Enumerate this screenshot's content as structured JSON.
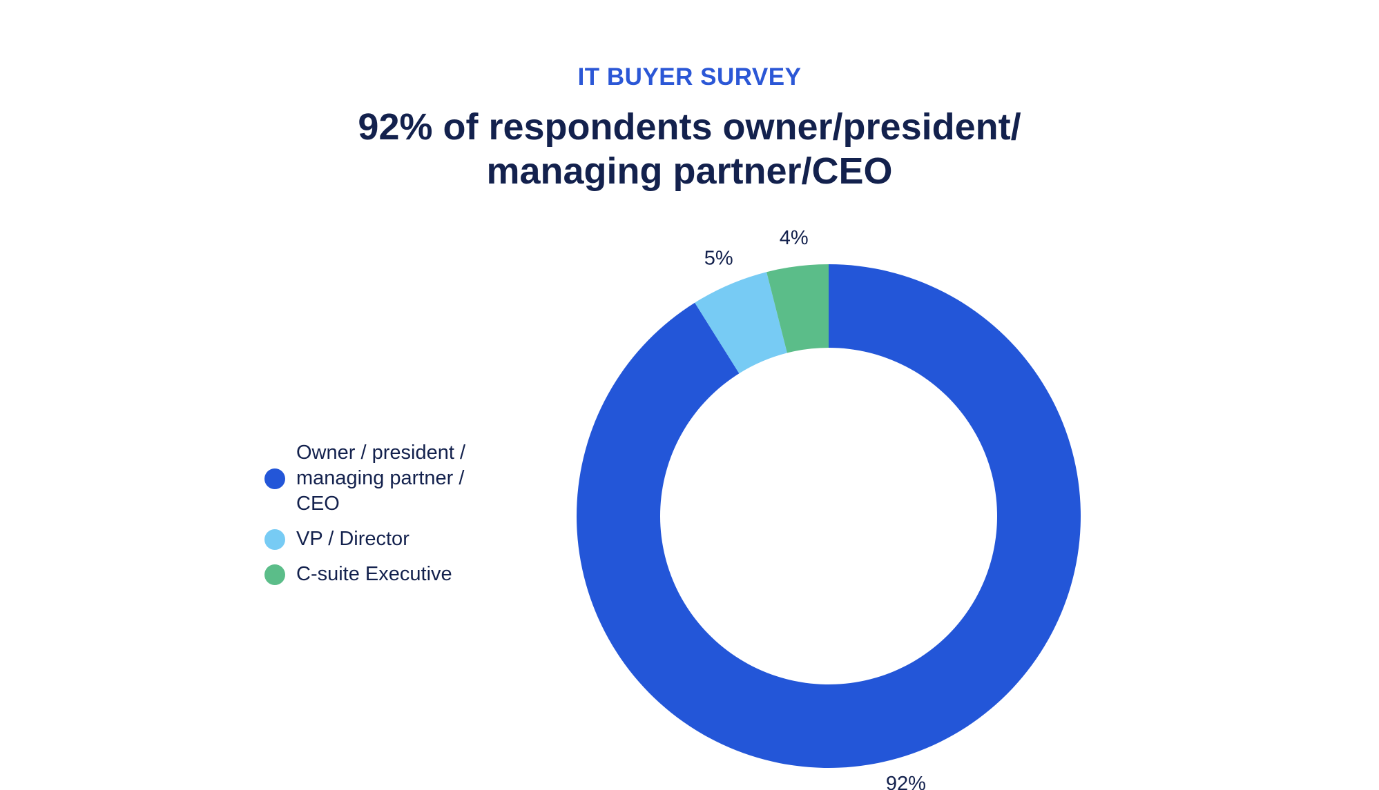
{
  "header": {
    "eyebrow": "IT BUYER SURVEY",
    "title_lines": [
      "92% of respondents owner/president/",
      "managing partner/CEO"
    ]
  },
  "legend": {
    "items": [
      {
        "label_lines": [
          "Owner / president /",
          "managing partner /",
          "CEO"
        ],
        "color": "#2356d8"
      },
      {
        "label_lines": [
          "VP / Director"
        ],
        "color": "#77cbf4"
      },
      {
        "label_lines": [
          "C-suite Executive"
        ],
        "color": "#5bbd89"
      }
    ]
  },
  "chart_data": {
    "type": "pie",
    "variant": "donut",
    "title": "92% of respondents owner/president/managing partner/CEO",
    "categories": [
      "Owner / president / managing partner / CEO",
      "VP / Director",
      "C-suite Executive"
    ],
    "values": [
      92,
      5,
      4
    ],
    "value_labels": [
      "92%",
      "5%",
      "4%"
    ],
    "colors": [
      "#2356d8",
      "#77cbf4",
      "#5bbd89"
    ],
    "legend_position": "left"
  }
}
